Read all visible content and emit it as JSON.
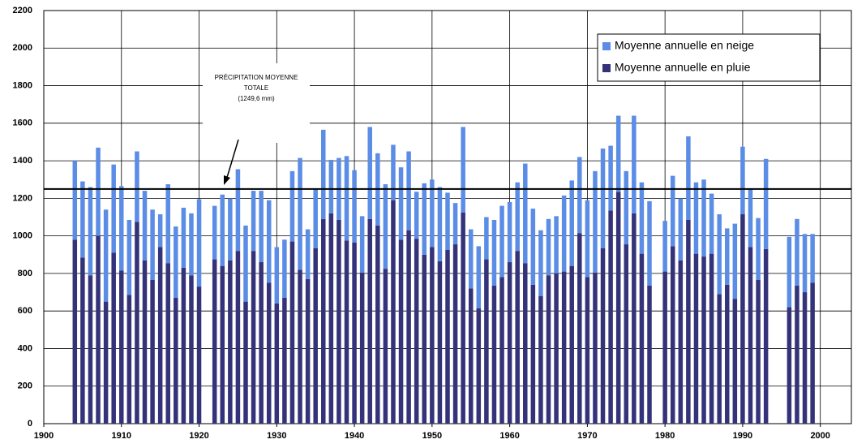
{
  "chart_data": {
    "type": "stacked_bar",
    "x": [
      1904,
      1905,
      1906,
      1907,
      1908,
      1909,
      1910,
      1911,
      1912,
      1913,
      1914,
      1915,
      1916,
      1917,
      1918,
      1919,
      1920,
      1922,
      1923,
      1924,
      1925,
      1926,
      1927,
      1928,
      1929,
      1930,
      1931,
      1932,
      1933,
      1934,
      1935,
      1936,
      1937,
      1938,
      1939,
      1940,
      1941,
      1942,
      1943,
      1944,
      1945,
      1946,
      1947,
      1948,
      1949,
      1950,
      1951,
      1952,
      1953,
      1954,
      1955,
      1956,
      1957,
      1958,
      1959,
      1960,
      1961,
      1962,
      1963,
      1964,
      1965,
      1966,
      1967,
      1968,
      1969,
      1970,
      1971,
      1972,
      1973,
      1974,
      1975,
      1976,
      1977,
      1978,
      1980,
      1981,
      1982,
      1983,
      1984,
      1985,
      1986,
      1987,
      1988,
      1989,
      1990,
      1991,
      1992,
      1993,
      1996,
      1997,
      1998,
      1999
    ],
    "series": [
      {
        "name": "Moyenne annuelle en pluie",
        "color": "#34337a",
        "values": [
          980,
          885,
          790,
          1000,
          650,
          910,
          815,
          685,
          1075,
          870,
          765,
          940,
          855,
          670,
          830,
          790,
          730,
          875,
          840,
          870,
          920,
          650,
          920,
          860,
          750,
          640,
          670,
          970,
          820,
          770,
          935,
          1090,
          1120,
          1085,
          975,
          965,
          805,
          1090,
          1055,
          825,
          1190,
          980,
          1030,
          985,
          900,
          940,
          865,
          925,
          955,
          1125,
          720,
          615,
          875,
          735,
          780,
          860,
          920,
          855,
          740,
          680,
          790,
          800,
          810,
          840,
          1015,
          780,
          805,
          935,
          1135,
          1235,
          955,
          1120,
          905,
          735,
          810,
          945,
          870,
          1085,
          905,
          890,
          905,
          690,
          740,
          665,
          1115,
          940,
          765,
          930,
          620,
          735,
          700,
          750
        ]
      },
      {
        "name": "Moyenne annuelle en neige",
        "color": "#5b8de6",
        "values": [
          420,
          405,
          470,
          470,
          490,
          470,
          450,
          400,
          375,
          370,
          375,
          175,
          420,
          380,
          320,
          330,
          465,
          285,
          380,
          330,
          435,
          405,
          320,
          380,
          440,
          300,
          310,
          375,
          595,
          265,
          315,
          475,
          285,
          330,
          450,
          385,
          300,
          490,
          385,
          450,
          295,
          385,
          420,
          250,
          380,
          360,
          395,
          305,
          220,
          455,
          315,
          330,
          225,
          350,
          380,
          320,
          365,
          530,
          405,
          350,
          300,
          305,
          405,
          455,
          405,
          410,
          540,
          530,
          345,
          405,
          390,
          520,
          380,
          450,
          270,
          375,
          330,
          445,
          380,
          410,
          320,
          425,
          300,
          400,
          360,
          310,
          330,
          480,
          375,
          355,
          310,
          260
        ]
      }
    ],
    "xlim": [
      1900,
      2004
    ],
    "xticks": [
      1900,
      1910,
      1920,
      1930,
      1940,
      1950,
      1960,
      1970,
      1980,
      1990,
      2000
    ],
    "ylim": [
      0,
      2200
    ],
    "yticks": [
      0,
      200,
      400,
      600,
      800,
      1000,
      1200,
      1400,
      1600,
      1800,
      2000,
      2200
    ],
    "grid": true,
    "legend": "top-right",
    "mean_line": {
      "value": 1249.6,
      "label": "(1249,6 mm)"
    },
    "annotation": [
      "PRÉCIPITATION MOYENNE",
      "TOTALE"
    ]
  }
}
